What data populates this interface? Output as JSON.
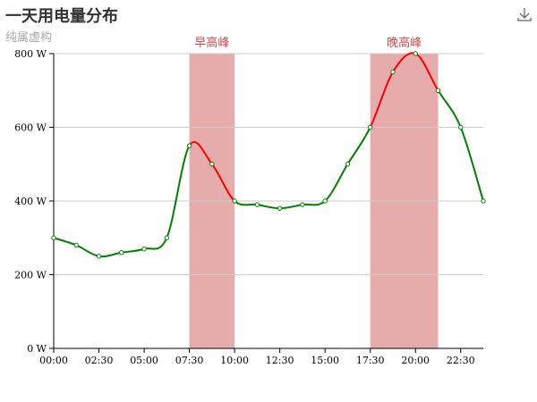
{
  "header": {
    "title": "一天用电量分布",
    "subtitle": "纯属虚构",
    "download_icon": "download-icon"
  },
  "colors": {
    "normal_line": "#008000",
    "highlight_line": "#ff0000",
    "band_fill": "#e6acac",
    "band_label": "#d14a4a",
    "grid": "#cccccc",
    "axis": "#000000"
  },
  "chart_data": {
    "type": "line",
    "title": "一天用电量分布",
    "subtitle": "纯属虚构",
    "x": [
      "00:00",
      "01:15",
      "02:30",
      "03:45",
      "05:00",
      "06:15",
      "07:30",
      "08:45",
      "10:00",
      "11:15",
      "12:30",
      "13:45",
      "15:00",
      "16:15",
      "17:30",
      "18:45",
      "20:00",
      "21:15",
      "22:30",
      "23:45"
    ],
    "series": [
      {
        "values": [
          300,
          280,
          250,
          260,
          270,
          300,
          550,
          500,
          400,
          390,
          380,
          390,
          400,
          500,
          600,
          750,
          800,
          700,
          600,
          400
        ]
      }
    ],
    "x_tick_labels": [
      "00:00",
      "02:30",
      "05:00",
      "07:30",
      "10:00",
      "12:30",
      "15:00",
      "17:30",
      "20:00",
      "22:30"
    ],
    "y_ticks": [
      0,
      200,
      400,
      600,
      800
    ],
    "y_unit": " W",
    "ylim": [
      0,
      800
    ],
    "smooth": true,
    "grid": "horizontal",
    "mark_areas": [
      {
        "label": "早高峰",
        "from": "07:30",
        "to": "10:00"
      },
      {
        "label": "晚高峰",
        "from": "17:30",
        "to": "21:15"
      }
    ],
    "highlight_pieces": [
      {
        "from": "07:30",
        "to": "10:00",
        "color": "red"
      },
      {
        "from": "17:30",
        "to": "21:15",
        "color": "red"
      }
    ]
  }
}
